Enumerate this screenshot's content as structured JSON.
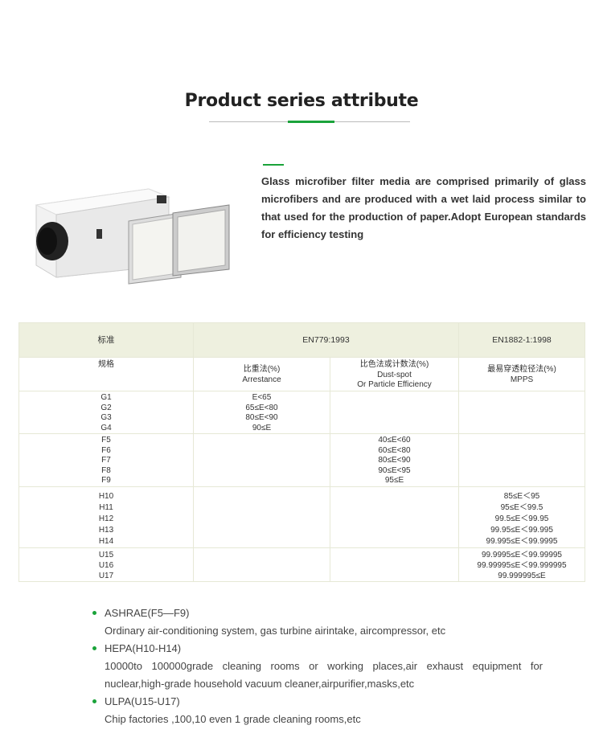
{
  "section": {
    "title": "Product series attribute",
    "accent_color": "#1aa33a"
  },
  "description": "Glass microfiber filter media are comprised primarily of glass microfibers and are produced with a wet laid process similar to that used for the production of paper.Adopt European standards for efficiency testing",
  "table": {
    "standard_label": "标准",
    "standard_1": "EN779:1993",
    "standard_2": "EN1882-1:1998",
    "headers": {
      "spec": "规格",
      "arrestance_cn": "比重法(%)",
      "arrestance_en": "Arrestance",
      "dustspot_cn": "比色法或计数法(%)",
      "dustspot_en1": "Dust-spot",
      "dustspot_en2": "Or Particle Efficiency",
      "mpps_cn": "最易穿透粒径法(%)",
      "mpps_en": "MPPS"
    },
    "groups": [
      {
        "grades": [
          "G1",
          "G2",
          "G3",
          "G4"
        ],
        "arrestance": [
          "E<65",
          "65≤E<80",
          "80≤E<90",
          "90≤E"
        ],
        "dustspot": [],
        "mpps": []
      },
      {
        "grades": [
          "F5",
          "F6",
          "F7",
          "F8",
          "F9"
        ],
        "arrestance": [],
        "dustspot": [
          "40≤E<60",
          "60≤E<80",
          "80≤E<90",
          "90≤E<95",
          "95≤E"
        ],
        "mpps": []
      },
      {
        "grades": [
          "H10",
          "H11",
          "H12",
          "H13",
          "H14"
        ],
        "arrestance": [],
        "dustspot": [],
        "mpps": [
          "85≤E＜95",
          "95≤E＜99.5",
          "99.5≤E＜99.95",
          "99.95≤E＜99.995",
          "99.995≤E＜99.9995"
        ]
      },
      {
        "grades": [
          "U15",
          "U16",
          "U17"
        ],
        "arrestance": [],
        "dustspot": [],
        "mpps": [
          "99.9995≤E＜99.99995",
          "99.99995≤E＜99.999995",
          "99.999995≤E"
        ]
      }
    ]
  },
  "applications": [
    {
      "title": "ASHRAE(F5—F9)",
      "desc": "Ordinary air-conditioning system, gas turbine airintake, aircompressor, etc"
    },
    {
      "title": "HEPA(H10-H14)",
      "desc": "10000to 100000grade cleaning rooms or working places,air exhaust equipment for nuclear,high-grade household vacuum cleaner,airpurifier,masks,etc"
    },
    {
      "title": "ULPA(U15-U17)",
      "desc": "Chip factories ,100,10 even 1 grade cleaning rooms,etc"
    }
  ]
}
